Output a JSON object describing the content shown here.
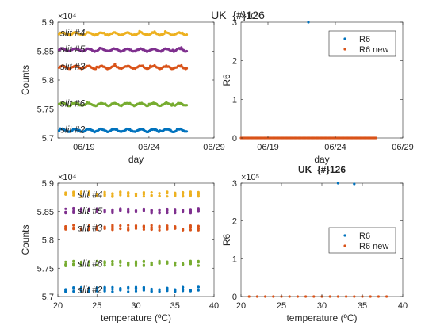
{
  "figure_title": "UK_{#}126",
  "chart_data": [
    {
      "type": "scatter",
      "xlabel": "day",
      "ylabel": "Counts",
      "exponent": "×10⁴",
      "x_ticklabels": [
        "06/19",
        "06/24",
        "06/29"
      ],
      "x_domain": [
        "2021-06-17",
        "2021-06-29"
      ],
      "ylim": [
        5.7,
        5.9
      ],
      "y_ticks": [
        5.7,
        5.75,
        5.8,
        5.85,
        5.9
      ],
      "annotations": [
        "slit #4",
        "slit #5",
        "slit #3",
        "slit #6",
        "slit #2"
      ],
      "series": [
        {
          "name": "slit #4",
          "color": "#EDB120",
          "level": 5.88
        },
        {
          "name": "slit #5",
          "color": "#7E2F8E",
          "level": 5.852
        },
        {
          "name": "slit #3",
          "color": "#D95319",
          "level": 5.822
        },
        {
          "name": "slit #6",
          "color": "#77AC30",
          "level": 5.758
        },
        {
          "name": "slit #2",
          "color": "#0072BD",
          "level": 5.713
        }
      ],
      "x_range_days": [
        "2021-06-17",
        "2021-06-27"
      ]
    },
    {
      "type": "scatter",
      "xlabel": "day",
      "ylabel": "R6",
      "exponent": "×10⁵",
      "x_ticklabels": [
        "06/19",
        "06/24",
        "06/29"
      ],
      "x_domain": [
        "2021-06-17",
        "2021-06-29"
      ],
      "ylim": [
        0,
        3
      ],
      "y_ticks": [
        0,
        1,
        2,
        3
      ],
      "legend": [
        "R6",
        "R6 new"
      ],
      "legend_position": "top-right",
      "series": [
        {
          "name": "R6",
          "color": "#0072BD",
          "outliers": [
            {
              "x": "2021-06-22",
              "y": 3.0
            }
          ]
        },
        {
          "name": "R6 new",
          "color": "#D95319",
          "baseline": 0
        }
      ],
      "x_range_days": [
        "2021-06-17",
        "2021-06-27"
      ]
    },
    {
      "type": "scatter",
      "xlabel": "temperature (ºC)",
      "ylabel": "Counts",
      "exponent": "×10⁴",
      "xlim": [
        20,
        40
      ],
      "x_ticks": [
        20,
        25,
        30,
        35,
        40
      ],
      "ylim": [
        5.7,
        5.9
      ],
      "y_ticks": [
        5.7,
        5.75,
        5.8,
        5.85,
        5.9
      ],
      "annotations": [
        "slit #4",
        "slit #5",
        "slit #3",
        "slit #6",
        "slit #2"
      ],
      "temp_columns": [
        21,
        22,
        23,
        24,
        25,
        26,
        27,
        28,
        29,
        30,
        31,
        32,
        33,
        34,
        35,
        36,
        37,
        38
      ],
      "series": [
        {
          "name": "slit #4",
          "color": "#EDB120",
          "level": 5.88
        },
        {
          "name": "slit #5",
          "color": "#7E2F8E",
          "level": 5.851
        },
        {
          "name": "slit #3",
          "color": "#D95319",
          "level": 5.821
        },
        {
          "name": "slit #6",
          "color": "#77AC30",
          "level": 5.758
        },
        {
          "name": "slit #2",
          "color": "#0072BD",
          "level": 5.712
        }
      ]
    },
    {
      "type": "scatter",
      "title": "UK_{#}126",
      "xlabel": "temperature (ºC)",
      "ylabel": "R6",
      "exponent": "×10⁵",
      "xlim": [
        20,
        40
      ],
      "x_ticks": [
        20,
        25,
        30,
        35,
        40
      ],
      "ylim": [
        0,
        3
      ],
      "y_ticks": [
        0,
        1,
        2,
        3
      ],
      "legend": [
        "R6",
        "R6 new"
      ],
      "legend_position": "right",
      "temp_columns": [
        21,
        22,
        23,
        24,
        25,
        26,
        27,
        28,
        29,
        30,
        31,
        32,
        33,
        34,
        35,
        36,
        37,
        38
      ],
      "series": [
        {
          "name": "R6",
          "color": "#0072BD",
          "outliers": [
            {
              "x": 32,
              "y": 3.0
            },
            {
              "x": 34,
              "y": 2.98
            }
          ]
        },
        {
          "name": "R6 new",
          "color": "#D95319",
          "baseline": 0
        }
      ]
    }
  ]
}
